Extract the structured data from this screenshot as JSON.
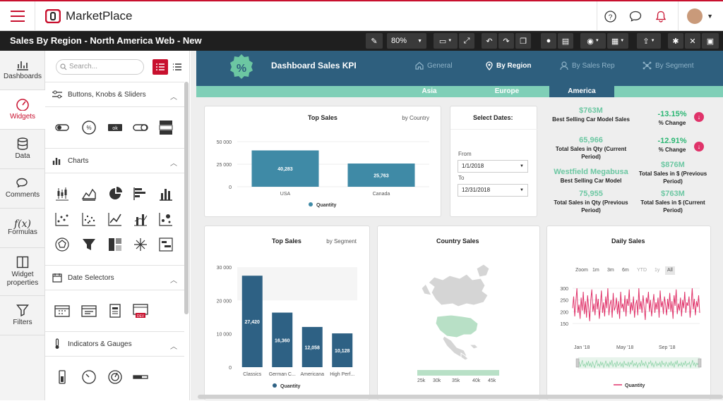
{
  "app": {
    "name": "MarketPlace"
  },
  "toolbar": {
    "title": "Sales By Region - North America Web - New",
    "zoom": "80%"
  },
  "nav": [
    {
      "label": "Dashboards"
    },
    {
      "label": "Widgets"
    },
    {
      "label": "Data"
    },
    {
      "label": "Comments"
    },
    {
      "label": "Formulas"
    },
    {
      "label": "Widget properties"
    },
    {
      "label": "Filters"
    }
  ],
  "widgets": {
    "search_placeholder": "Search...",
    "sections": [
      {
        "label": "Buttons, Knobs & Sliders"
      },
      {
        "label": "Charts"
      },
      {
        "label": "Date Selectors"
      },
      {
        "label": "Indicators & Gauges"
      }
    ]
  },
  "dashboard": {
    "title": "Dashboard Sales KPI",
    "badge": "%",
    "tabs": [
      {
        "label": "General"
      },
      {
        "label": "By Region"
      },
      {
        "label": "By Sales Rep"
      },
      {
        "label": "By Segment"
      }
    ],
    "region_tabs": [
      {
        "label": "Asia"
      },
      {
        "label": "Europe"
      },
      {
        "label": "America"
      }
    ]
  },
  "top_sales_country": {
    "title": "Top Sales",
    "subtitle": "by Country",
    "legend": "Quantity",
    "yticks": [
      "50 000",
      "25 000",
      "0"
    ]
  },
  "dates": {
    "title": "Select Dates:",
    "from_label": "From",
    "from_value": "1/1/2018",
    "to_label": "To",
    "to_value": "12/31/2018"
  },
  "kpis": [
    {
      "value": "$763M",
      "label": "Best Selling Car Model Sales"
    },
    {
      "value": "65,966",
      "label": "Total Sales in Qty (Current Period)"
    },
    {
      "value": "Westfield Megabusa",
      "label": "Best Selling Car Model"
    },
    {
      "value": "75,955",
      "label": "Total Sales in Qty (Previous Period)"
    }
  ],
  "changes": [
    {
      "value": "-13.15%",
      "label": "% Change"
    },
    {
      "value": "-12.91%",
      "label": "% Change"
    },
    {
      "value": "$876M",
      "label": "Total Sales in $ (Previous Period)"
    },
    {
      "value": "$763M",
      "label": "Total Sales in $ (Current Period)"
    }
  ],
  "top_sales_segment": {
    "title": "Top Sales",
    "subtitle": "by Segment",
    "legend": "Quantity",
    "yticks": [
      "30 000",
      "20 000",
      "10 000",
      "0"
    ]
  },
  "country_sales": {
    "title": "Country Sales",
    "scale": [
      "25k",
      "30k",
      "35k",
      "40k",
      "45k"
    ]
  },
  "daily_sales": {
    "title": "Daily Sales",
    "zoom_label": "Zoom",
    "zoom_options": [
      "1m",
      "3m",
      "6m",
      "YTD",
      "1y",
      "All"
    ],
    "yticks": [
      "300",
      "250",
      "200",
      "150"
    ],
    "xticks": [
      "Jan '18",
      "May '18",
      "Sep '18"
    ],
    "legend": "Quantity"
  },
  "colors": {
    "accent": "#c8102e",
    "header": "#2e5f7e",
    "teal": "#7fcfb7",
    "bar1": "#3f8aa6",
    "bar2": "#2e6184",
    "line": "#e0336a"
  },
  "chart_data": [
    {
      "type": "bar",
      "title": "Top Sales",
      "subtitle": "by Country",
      "categories": [
        "USA",
        "Canada"
      ],
      "series": [
        {
          "name": "Quantity",
          "values": [
            40283,
            25763
          ]
        }
      ],
      "ylim": [
        0,
        50000
      ]
    },
    {
      "type": "bar",
      "title": "Top Sales",
      "subtitle": "by Segment",
      "categories": [
        "Classics",
        "German C...",
        "Americana",
        "High Perf..."
      ],
      "series": [
        {
          "name": "Quantity",
          "values": [
            27420,
            16360,
            12058,
            10128
          ]
        }
      ],
      "ylim": [
        0,
        30000
      ]
    },
    {
      "type": "line",
      "title": "Daily Sales",
      "series": [
        {
          "name": "Quantity",
          "values": [
            215,
            265,
            180,
            240,
            300,
            195,
            230,
            170,
            260,
            205,
            285,
            190,
            245,
            175,
            270,
            220,
            160,
            250,
            295,
            200,
            235,
            185,
            275,
            210,
            255,
            170,
            225,
            290,
            195,
            240,
            180,
            265,
            215,
            300,
            185,
            230,
            250,
            175,
            280,
            205,
            220,
            260,
            190,
            245,
            170,
            285,
            215,
            235,
            200,
            270,
            180,
            255,
            225,
            295,
            190,
            240,
            205,
            265,
            175,
            230,
            250,
            185,
            300,
            210,
            245,
            195,
            270,
            220,
            165,
            260,
            235,
            285,
            200,
            250,
            180,
            225,
            275,
            195,
            240,
            210,
            260,
            175,
            290,
            220,
            245,
            190,
            265,
            230,
            185,
            255,
            210,
            280,
            200,
            245,
            170,
            270,
            225,
            295,
            190,
            235,
            205,
            260,
            180,
            250,
            215,
            285,
            195,
            240,
            225,
            265,
            175,
            230,
            300,
            210,
            255,
            185,
            245,
            220,
            270,
            195
          ]
        }
      ],
      "xticks": [
        "Jan '18",
        "May '18",
        "Sep '18"
      ],
      "ylim": [
        150,
        300
      ]
    }
  ]
}
